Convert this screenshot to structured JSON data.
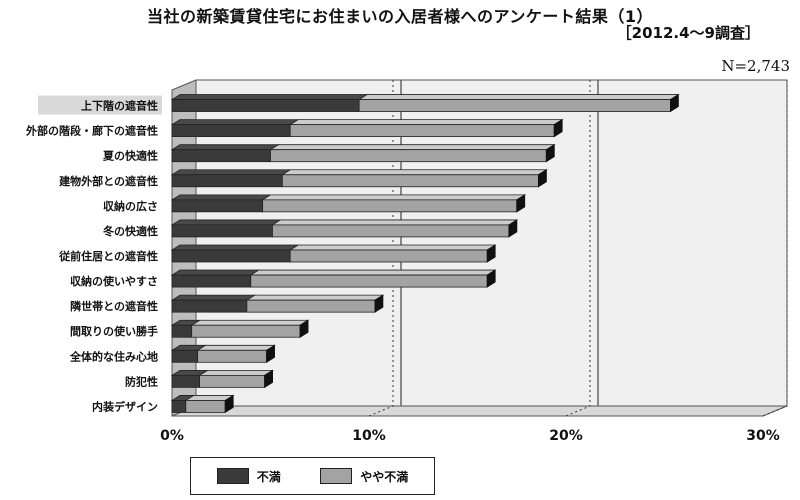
{
  "chart_data": {
    "type": "bar",
    "stacked": true,
    "orientation": "horizontal",
    "title": "当社の新築賃貸住宅にお住まいの入居者様へのアンケート結果（1）",
    "subtitle": "［2012.4～9調査］",
    "n_label": "N=2,743",
    "categories": [
      "上下階の遮音性",
      "外部の階段・廊下の遮音性",
      "夏の快適性",
      "建物外部との遮音性",
      "収納の広さ",
      "冬の快適性",
      "従前住居との遮音性",
      "収納の使いやすさ",
      "隣世帯との遮音性",
      "間取りの使い勝手",
      "全体的な住み心地",
      "防犯性",
      "内装デザイン"
    ],
    "highlighted_category": "上下階の遮音性",
    "series": [
      {
        "name": "不満",
        "color": "#3a3a3a",
        "values": [
          9.5,
          6.0,
          5.0,
          5.6,
          4.6,
          5.1,
          6.0,
          4.0,
          3.8,
          1.0,
          1.3,
          1.4,
          0.7
        ]
      },
      {
        "name": "やや不満",
        "color": "#a3a3a3",
        "values": [
          15.8,
          13.4,
          14.0,
          13.0,
          12.9,
          12.0,
          10.0,
          12.0,
          6.5,
          5.5,
          3.5,
          3.3,
          2.0
        ]
      }
    ],
    "xlim": [
      0,
      30
    ],
    "xticks": [
      "0%",
      "10%",
      "20%",
      "30%"
    ],
    "grid": true,
    "legend_position": "bottom-left"
  }
}
